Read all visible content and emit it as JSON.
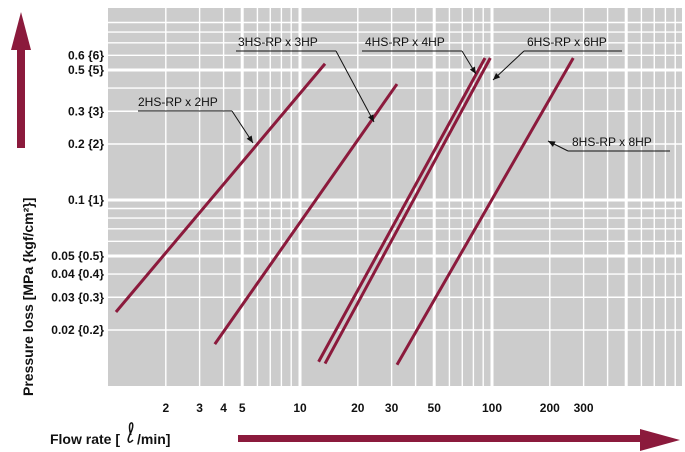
{
  "colors": {
    "accent": "#8b1a3c",
    "plot_bg": "#cccccc",
    "grid": "#ffffff"
  },
  "chart_data": {
    "type": "line",
    "title": "",
    "xlabel_parts": {
      "before": "Flow rate [",
      "unit_icon": "liter-symbol",
      "unit_after": "/min]"
    },
    "ylabel": "Pressure loss [MPa {kgf/cm²}]",
    "x_scale": "log",
    "y_scale": "log",
    "xlim": [
      1,
      800
    ],
    "ylim": [
      0.01,
      0.8
    ],
    "grid": true,
    "x_ticks": [
      {
        "value": 2,
        "label": "2"
      },
      {
        "value": 3,
        "label": "3"
      },
      {
        "value": 4,
        "label": "4"
      },
      {
        "value": 5,
        "label": "5"
      },
      {
        "value": 10,
        "label": "10"
      },
      {
        "value": 20,
        "label": "20"
      },
      {
        "value": 30,
        "label": "30"
      },
      {
        "value": 50,
        "label": "50"
      },
      {
        "value": 100,
        "label": "100"
      },
      {
        "value": 200,
        "label": "200"
      },
      {
        "value": 300,
        "label": "300"
      }
    ],
    "y_ticks": [
      {
        "value": 0.6,
        "label": "0.6 {6}"
      },
      {
        "value": 0.5,
        "label": "0.5 {5}"
      },
      {
        "value": 0.3,
        "label": "0.3 {3}"
      },
      {
        "value": 0.2,
        "label": "0.2 {2}"
      },
      {
        "value": 0.1,
        "label": "0.1 {1}"
      },
      {
        "value": 0.05,
        "label": "0.05 {0.5}"
      },
      {
        "value": 0.04,
        "label": "0.04 {0.4}"
      },
      {
        "value": 0.03,
        "label": "0.03 {0.3}"
      },
      {
        "value": 0.02,
        "label": "0.02 {0.2}"
      }
    ],
    "series": [
      {
        "name": "2HS-RP x 2HP",
        "x": [
          1.1,
          13.5
        ],
        "y": [
          0.025,
          0.54
        ]
      },
      {
        "name": "3HS-RP x 3HP",
        "x": [
          3.6,
          32
        ],
        "y": [
          0.0168,
          0.42
        ]
      },
      {
        "name": "4HS-RP x 4HP",
        "x": [
          12.5,
          92
        ],
        "y": [
          0.0135,
          0.58
        ]
      },
      {
        "name": "6HS-RP x 6HP",
        "x": [
          13.5,
          98
        ],
        "y": [
          0.0132,
          0.58
        ]
      },
      {
        "name": "8HS-RP x 8HP",
        "x": [
          32,
          265
        ],
        "y": [
          0.013,
          0.58
        ]
      }
    ]
  }
}
